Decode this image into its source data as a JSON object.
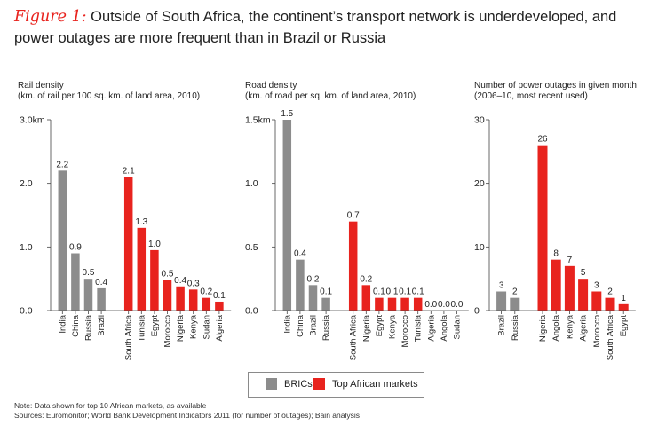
{
  "title": {
    "figure_label": "Figure 1:",
    "text": "Outside of South Africa, the continent’s transport network is underdeveloped, and power outages are more frequent than in Brazil or Russia"
  },
  "colors": {
    "brics": "#8c8c8c",
    "african": "#e8231e",
    "axis": "#444444",
    "text": "#222222"
  },
  "legend": {
    "brics_label": "BRICs",
    "african_label": "Top African markets"
  },
  "footer": {
    "note": "Note: Data shown for top 10 African markets, as available",
    "sources": "Sources: Euromonitor; World Bank Development Indicators 2011 (for number of outages); Bain analysis"
  },
  "chart_data": [
    {
      "type": "bar",
      "title": "Rail density",
      "subtitle": "(km. of rail per 100 sq. km. of land area, 2010)",
      "ylim": [
        0,
        3
      ],
      "yticks": [
        0,
        1,
        2,
        3
      ],
      "ytick_labels": [
        "0.0",
        "1.0",
        "2.0",
        "3.0km"
      ],
      "bars": [
        {
          "label": "India",
          "value": 2.2,
          "value_label": "2.2",
          "group": "brics"
        },
        {
          "label": "China",
          "value": 0.9,
          "value_label": "0.9",
          "group": "brics"
        },
        {
          "label": "Russia",
          "value": 0.5,
          "value_label": "0.5",
          "group": "brics"
        },
        {
          "label": "Brazil",
          "value": 0.35,
          "value_label": "0.4",
          "group": "brics"
        },
        {
          "label": "South Africa",
          "value": 2.1,
          "value_label": "2.1",
          "group": "african"
        },
        {
          "label": "Tunisia",
          "value": 1.3,
          "value_label": "1.3",
          "group": "african"
        },
        {
          "label": "Egypt",
          "value": 0.95,
          "value_label": "1.0",
          "group": "african"
        },
        {
          "label": "Morocco",
          "value": 0.48,
          "value_label": "0.5",
          "group": "african"
        },
        {
          "label": "Nigeria",
          "value": 0.38,
          "value_label": "0.4",
          "group": "african"
        },
        {
          "label": "Kenya",
          "value": 0.33,
          "value_label": "0.3",
          "group": "african"
        },
        {
          "label": "Sudan",
          "value": 0.2,
          "value_label": "0.2",
          "group": "african"
        },
        {
          "label": "Algeria",
          "value": 0.14,
          "value_label": "0.1",
          "group": "african"
        }
      ]
    },
    {
      "type": "bar",
      "title": "Road density",
      "subtitle": "(km. of road per sq. km. of land area, 2010)",
      "ylim": [
        0,
        1.5
      ],
      "yticks": [
        0,
        0.5,
        1,
        1.5
      ],
      "ytick_labels": [
        "0.0",
        "0.5",
        "1.0",
        "1.5km"
      ],
      "bars": [
        {
          "label": "India",
          "value": 1.5,
          "value_label": "1.5",
          "group": "brics"
        },
        {
          "label": "China",
          "value": 0.4,
          "value_label": "0.4",
          "group": "brics"
        },
        {
          "label": "Brazil",
          "value": 0.2,
          "value_label": "0.2",
          "group": "brics"
        },
        {
          "label": "Russia",
          "value": 0.1,
          "value_label": "0.1",
          "group": "brics"
        },
        {
          "label": "South Africa",
          "value": 0.7,
          "value_label": "0.7",
          "group": "african"
        },
        {
          "label": "Nigeria",
          "value": 0.2,
          "value_label": "0.2",
          "group": "african"
        },
        {
          "label": "Egypt",
          "value": 0.1,
          "value_label": "0.1",
          "group": "african"
        },
        {
          "label": "Kenya",
          "value": 0.1,
          "value_label": "0.1",
          "group": "african"
        },
        {
          "label": "Morocco",
          "value": 0.1,
          "value_label": "0.1",
          "group": "african"
        },
        {
          "label": "Tunisia",
          "value": 0.1,
          "value_label": "0.1",
          "group": "african"
        },
        {
          "label": "Algeria",
          "value": 0.0,
          "value_label": "0.0",
          "group": "african"
        },
        {
          "label": "Angola",
          "value": 0.0,
          "value_label": "0.0",
          "group": "african"
        },
        {
          "label": "Sudan",
          "value": 0.0,
          "value_label": "0.0",
          "group": "african"
        }
      ]
    },
    {
      "type": "bar",
      "title": "Number of power outages in given month",
      "subtitle": "(2006–10, most recent used)",
      "ylim": [
        0,
        30
      ],
      "yticks": [
        0,
        10,
        20,
        30
      ],
      "ytick_labels": [
        "0",
        "10",
        "20",
        "30"
      ],
      "bars": [
        {
          "label": "Brazil",
          "value": 3,
          "value_label": "3",
          "group": "brics"
        },
        {
          "label": "Russia",
          "value": 2,
          "value_label": "2",
          "group": "brics"
        },
        {
          "label": "Nigeria",
          "value": 26,
          "value_label": "26",
          "group": "african"
        },
        {
          "label": "Angola",
          "value": 8,
          "value_label": "8",
          "group": "african"
        },
        {
          "label": "Kenya",
          "value": 7,
          "value_label": "7",
          "group": "african"
        },
        {
          "label": "Algeria",
          "value": 5,
          "value_label": "5",
          "group": "african"
        },
        {
          "label": "Morocco",
          "value": 3,
          "value_label": "3",
          "group": "african"
        },
        {
          "label": "South Africa",
          "value": 2,
          "value_label": "2",
          "group": "african"
        },
        {
          "label": "Egypt",
          "value": 1,
          "value_label": "1",
          "group": "african"
        }
      ]
    }
  ]
}
